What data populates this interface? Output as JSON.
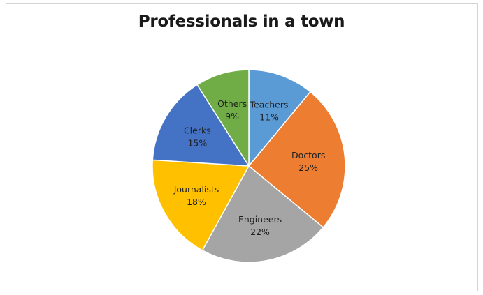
{
  "chart_data": {
    "type": "pie",
    "title": "Professionals in a town",
    "slices": [
      {
        "label": "Teachers",
        "value": 11,
        "value_label": "11%",
        "color": "#5b9bd5"
      },
      {
        "label": "Doctors",
        "value": 25,
        "value_label": "25%",
        "color": "#ed7d31"
      },
      {
        "label": "Engineers",
        "value": 22,
        "value_label": "22%",
        "color": "#a5a5a5"
      },
      {
        "label": "Journalists",
        "value": 18,
        "value_label": "18%",
        "color": "#ffc000"
      },
      {
        "label": "Clerks",
        "value": 15,
        "value_label": "15%",
        "color": "#4472c4"
      },
      {
        "label": "Others",
        "value": 9,
        "value_label": "9%",
        "color": "#70ad47"
      }
    ],
    "start_angle": "12 o'clock",
    "direction": "clockwise",
    "legend": "none",
    "data_labels": "inside"
  }
}
